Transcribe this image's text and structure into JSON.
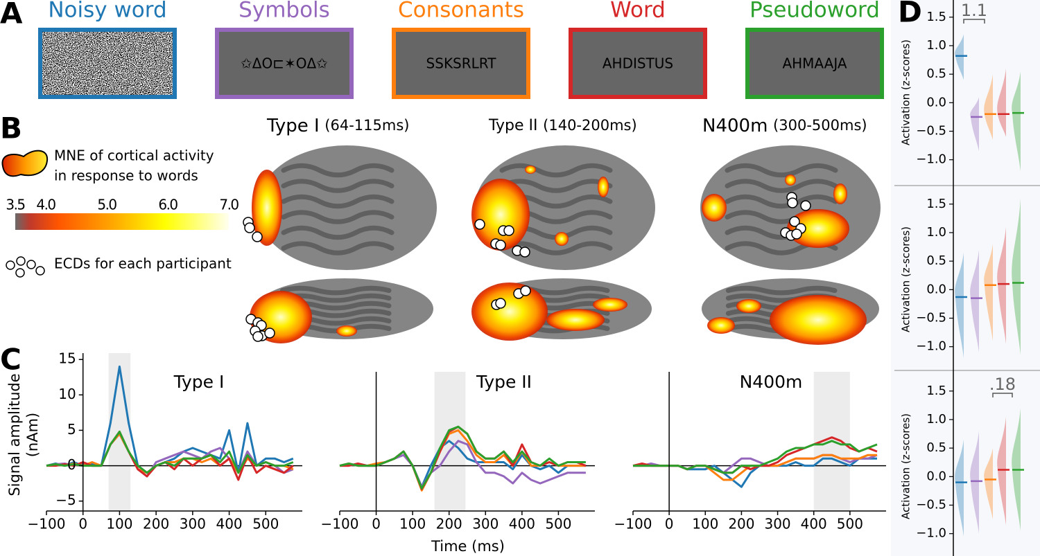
{
  "panel_labels": [
    "A",
    "B",
    "C",
    "D"
  ],
  "stimuli": [
    {
      "name": "Noisy word",
      "color": "#1f77b4"
    },
    {
      "name": "Symbols",
      "color": "#9467bd",
      "text": "✩ΔO⊏✶OΔ✩"
    },
    {
      "name": "Consonants",
      "color": "#ff7f0e",
      "text": "SSKSRLRT"
    },
    {
      "name": "Word",
      "color": "#d62728",
      "text": "AHDISTUS"
    },
    {
      "name": "Pseudoword",
      "color": "#2ca02c",
      "text": "AHMAAJA"
    }
  ],
  "brain": {
    "titles": [
      {
        "name": "Type I",
        "window": "(64-115ms)"
      },
      {
        "name": "Type II",
        "window": "(140-200ms)"
      },
      {
        "name": "N400m",
        "window": "(300-500ms)"
      }
    ],
    "mne_label": [
      "MNE of cortical activity",
      "in response to words"
    ],
    "colorbar": {
      "lim": [
        3.5,
        7
      ],
      "ticks": [
        3.5,
        {
          "value": 4,
          "label": "4.0"
        },
        {
          "value": 5,
          "label": "5.0"
        },
        {
          "value": 6,
          "label": "6.0"
        },
        {
          "value": 7,
          "label": "7.0"
        }
      ]
    },
    "ecd_label": "ECDs for each participant"
  },
  "chart_data": [
    {
      "type": "line",
      "title": "Type I",
      "ylabel": [
        "Signal amplitude",
        "(nAm)"
      ],
      "xlim": [
        -100,
        600
      ],
      "ylim": [
        -6.4,
        15.9
      ],
      "xticks": [
        {
          "value": -100,
          "label": "−100"
        },
        0,
        100,
        200,
        300,
        400,
        500
      ],
      "yticks": [
        {
          "value": -5,
          "label": "−5"
        },
        0,
        5,
        10,
        15
      ],
      "shade": [
        70,
        130
      ],
      "x": [
        -100,
        -75,
        -50,
        -25,
        0,
        25,
        50,
        75,
        100,
        125,
        150,
        175,
        200,
        225,
        250,
        275,
        300,
        325,
        350,
        375,
        400,
        425,
        450,
        475,
        500,
        525,
        550,
        575
      ],
      "series": [
        {
          "color": "#1f77b4",
          "values": [
            0,
            0.3,
            0,
            0.5,
            0,
            0.3,
            0,
            6,
            14,
            6,
            0,
            -1,
            0,
            0.5,
            1,
            2,
            2.5,
            2,
            1.5,
            1,
            5,
            -1,
            6,
            0,
            1,
            1,
            0.5,
            1
          ]
        },
        {
          "color": "#9467bd",
          "values": [
            0,
            0.2,
            0.3,
            0,
            0.3,
            0,
            0,
            3,
            4.5,
            2,
            -0.5,
            -1.5,
            0.5,
            1,
            1.5,
            2,
            1.5,
            1,
            2,
            2.5,
            1,
            -1,
            2,
            0,
            0.5,
            0,
            -1,
            -0.5
          ]
        },
        {
          "color": "#ff7f0e",
          "values": [
            0,
            0.2,
            0,
            0.3,
            0,
            0.5,
            0,
            3,
            4.5,
            2,
            -0.5,
            -1,
            0,
            0.5,
            0.5,
            1,
            1,
            0.5,
            1,
            0,
            1,
            -1,
            1,
            0,
            0.5,
            0,
            0,
            -0.5
          ]
        },
        {
          "color": "#d62728",
          "values": [
            0,
            0,
            0.2,
            0,
            0.5,
            0,
            0,
            3,
            4.8,
            2,
            -0.5,
            -1.5,
            0,
            0.5,
            -0.5,
            1,
            0,
            1,
            1.5,
            0,
            1,
            -2,
            1.5,
            -1,
            0,
            -0.5,
            -1,
            0
          ]
        },
        {
          "color": "#2ca02c",
          "values": [
            0,
            0.2,
            0,
            0.2,
            0,
            0,
            0,
            3,
            4.8,
            2,
            0,
            -1,
            0,
            0.5,
            0,
            1,
            1,
            1,
            1.5,
            0.5,
            2,
            -1,
            1.5,
            0,
            0.5,
            0,
            0,
            0.5
          ]
        }
      ]
    },
    {
      "type": "line",
      "title": "Type II",
      "xlabel": "Time (ms)",
      "xlim": [
        -100,
        600
      ],
      "ylim": [
        -6.4,
        15.9
      ],
      "xticks": [
        {
          "value": -100,
          "label": "−100"
        },
        0,
        100,
        200,
        300,
        400,
        500
      ],
      "shade": [
        160,
        245
      ],
      "x": [
        -100,
        -75,
        -50,
        -25,
        0,
        25,
        50,
        75,
        100,
        125,
        150,
        175,
        200,
        225,
        250,
        275,
        300,
        325,
        350,
        375,
        400,
        425,
        450,
        475,
        500,
        525,
        550,
        575
      ],
      "series": [
        {
          "color": "#1f77b4",
          "values": [
            0,
            0.3,
            0,
            0,
            0,
            0.5,
            1,
            2,
            0,
            -3,
            0,
            2.5,
            3.5,
            2.5,
            1,
            0.5,
            0.5,
            0.5,
            0.5,
            -0.5,
            1.5,
            0,
            -0.5,
            0,
            -1,
            0,
            0,
            0
          ]
        },
        {
          "color": "#9467bd",
          "values": [
            0,
            0,
            0.3,
            0,
            0,
            0.5,
            1,
            1.5,
            0,
            -3,
            -1,
            0,
            2,
            3.5,
            3,
            0.5,
            -1,
            -1,
            -1.5,
            -2.5,
            -1,
            -2,
            -2.5,
            -2,
            -1.5,
            -1,
            -1,
            -1
          ]
        },
        {
          "color": "#ff7f0e",
          "values": [
            0,
            0.3,
            0,
            0,
            0.3,
            0.5,
            1,
            2,
            0,
            -3.5,
            -1,
            2,
            4.5,
            5,
            3.5,
            1.5,
            0.5,
            0.5,
            1.5,
            0,
            2,
            0,
            0,
            0.5,
            0,
            0,
            0,
            0
          ]
        },
        {
          "color": "#d62728",
          "values": [
            0,
            0,
            0.3,
            0,
            0,
            0.5,
            1,
            2,
            0,
            -3.3,
            -1,
            2,
            4.8,
            5.5,
            4.5,
            2,
            1,
            1,
            2,
            0,
            3,
            0.5,
            0,
            0.5,
            0,
            0.5,
            0.5,
            0
          ]
        },
        {
          "color": "#2ca02c",
          "values": [
            0,
            0.3,
            0,
            0,
            0,
            0.5,
            1,
            2,
            0,
            -3.2,
            -1,
            2.5,
            5,
            5.5,
            4.5,
            2,
            1,
            1,
            2,
            0.5,
            2,
            0.5,
            0,
            1,
            0,
            0.5,
            0.5,
            0.5
          ]
        }
      ]
    },
    {
      "type": "line",
      "title": "N400m",
      "xlim": [
        -100,
        600
      ],
      "ylim": [
        -6.4,
        15.9
      ],
      "xticks": [
        {
          "value": -100,
          "label": "−100"
        },
        0,
        100,
        200,
        300,
        400,
        500
      ],
      "shade": [
        400,
        500
      ],
      "x": [
        -100,
        -75,
        -50,
        -25,
        0,
        25,
        50,
        75,
        100,
        125,
        150,
        175,
        200,
        225,
        250,
        275,
        300,
        325,
        350,
        375,
        400,
        425,
        450,
        475,
        500,
        525,
        550,
        575
      ],
      "series": [
        {
          "color": "#1f77b4",
          "values": [
            0,
            0,
            0,
            0,
            0,
            0,
            -0.5,
            -0.5,
            -0.5,
            0,
            -1,
            -2,
            -3,
            -1,
            0,
            0,
            0,
            0,
            0.5,
            0,
            0,
            1,
            1,
            0.5,
            0,
            1,
            1,
            1
          ]
        },
        {
          "color": "#9467bd",
          "values": [
            0,
            0,
            0.3,
            0,
            0,
            0,
            -0.5,
            0,
            0,
            -0.5,
            -1,
            0,
            1,
            1,
            0.5,
            0,
            0,
            0.5,
            1,
            1,
            1,
            1.5,
            1.5,
            1,
            0.5,
            1,
            1,
            1.5
          ]
        },
        {
          "color": "#ff7f0e",
          "values": [
            0,
            0,
            0,
            0,
            0,
            0,
            -0.5,
            0,
            0,
            -1,
            -2,
            -2,
            -1,
            0,
            0,
            0,
            0,
            0.5,
            1,
            1,
            1,
            1.5,
            1.5,
            1,
            1,
            1,
            1.5,
            1.5
          ]
        },
        {
          "color": "#d62728",
          "values": [
            0,
            0.3,
            0,
            0,
            0,
            0,
            -0.5,
            0,
            0,
            -0.5,
            -1,
            -1,
            0,
            -0.5,
            0,
            0,
            0.5,
            1.5,
            2,
            2.5,
            3,
            3.5,
            4,
            3.5,
            2.5,
            2,
            2.5,
            2
          ]
        },
        {
          "color": "#2ca02c",
          "values": [
            0,
            0,
            0,
            0,
            0,
            0,
            -0.5,
            0,
            0,
            -0.5,
            -1,
            -1,
            0,
            0,
            0,
            0.5,
            1,
            2,
            2.5,
            2.5,
            3,
            3,
            3.5,
            3,
            3,
            2,
            2.5,
            3
          ]
        }
      ]
    },
    {
      "type": "violin",
      "ylabel": "Activation (z-scores)",
      "annotation": "1.1",
      "ylim": [
        -1.38,
        1.74
      ],
      "yticks": [
        {
          "value": -1,
          "label": "−1.0"
        },
        {
          "value": -0.5,
          "label": "−0.5"
        },
        {
          "value": 0,
          "label": "0.0"
        },
        0.5,
        {
          "value": 1,
          "label": "1.0"
        },
        1.5
      ],
      "colors": [
        "#1f77b4",
        "#9467bd",
        "#ff7f0e",
        "#d62728",
        "#2ca02c"
      ],
      "medians": [
        0.82,
        -0.25,
        -0.2,
        -0.2,
        -0.18
      ],
      "lows": [
        0.4,
        -0.85,
        -0.65,
        -0.6,
        -1.2
      ],
      "highs": [
        1.2,
        0.1,
        0.5,
        0.6,
        0.55
      ]
    },
    {
      "type": "violin",
      "ylabel": "Activation (z-scores)",
      "ylim": [
        -1.38,
        1.74
      ],
      "yticks": [
        {
          "value": -1,
          "label": "−1.0"
        },
        {
          "value": -0.5,
          "label": "−0.5"
        },
        {
          "value": 0,
          "label": "0.0"
        },
        0.5,
        {
          "value": 1,
          "label": "1.0"
        },
        1.5
      ],
      "colors": [
        "#1f77b4",
        "#9467bd",
        "#ff7f0e",
        "#d62728",
        "#2ca02c"
      ],
      "medians": [
        -0.13,
        -0.15,
        0.08,
        0.1,
        0.12
      ],
      "lows": [
        -1.2,
        -1.1,
        -0.9,
        -0.95,
        -1.15
      ],
      "highs": [
        0.65,
        0.7,
        0.8,
        1.1,
        1.6
      ]
    },
    {
      "type": "violin",
      "ylabel": "Activation (z-scores)",
      "annotation": ".18",
      "ylim": [
        -1.38,
        1.74
      ],
      "yticks": [
        {
          "value": -1,
          "label": "−1.0"
        },
        {
          "value": -0.5,
          "label": "−0.5"
        },
        {
          "value": 0,
          "label": "0.0"
        },
        0.5,
        {
          "value": 1,
          "label": "1.0"
        },
        1.5
      ],
      "colors": [
        "#1f77b4",
        "#9467bd",
        "#ff7f0e",
        "#d62728",
        "#2ca02c"
      ],
      "medians": [
        -0.1,
        -0.08,
        -0.05,
        0.12,
        0.12
      ],
      "lows": [
        -1.05,
        -1.0,
        -0.75,
        -0.85,
        -0.95
      ],
      "highs": [
        0.65,
        0.8,
        0.5,
        1.05,
        1.2
      ]
    }
  ]
}
